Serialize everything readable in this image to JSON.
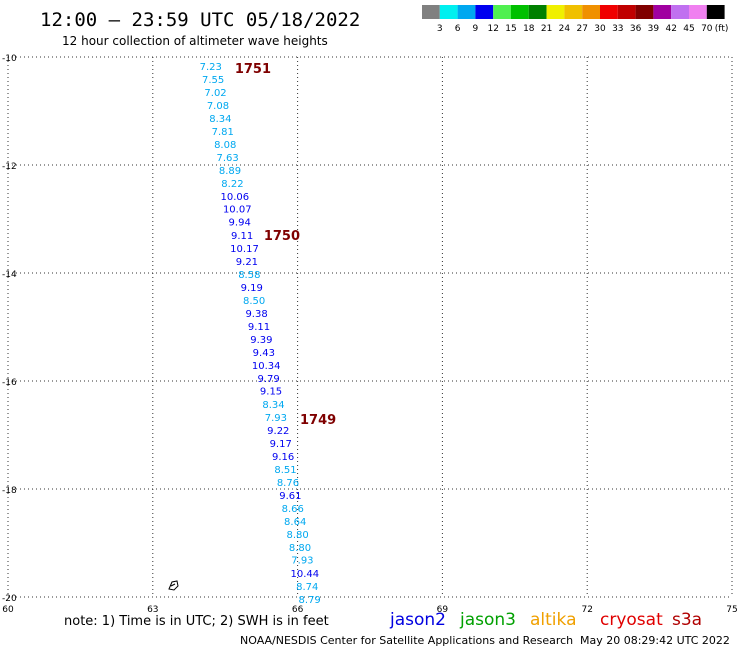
{
  "header": {
    "title": "12:00 – 23:59 UTC 05/18/2022",
    "subtitle": "12 hour collection of altimeter wave heights"
  },
  "legend": {
    "colors": [
      "#808080",
      "#00f0f0",
      "#00a8f0",
      "#0000f0",
      "#50f050",
      "#00c000",
      "#008000",
      "#f0f000",
      "#f0c000",
      "#f09000",
      "#f00000",
      "#c00000",
      "#800000",
      "#a000a0",
      "#c070f0",
      "#f080f0",
      "#000000"
    ],
    "labels": [
      "3",
      "6",
      "9",
      "12",
      "15",
      "18",
      "21",
      "24",
      "27",
      "30",
      "33",
      "36",
      "39",
      "42",
      "45",
      "70"
    ],
    "unit": "(ft)"
  },
  "footer": {
    "note": "note: 1) Time is in UTC; 2) SWH is in feet",
    "satellites": [
      {
        "name": "jason2",
        "color": "#0000e0"
      },
      {
        "name": "jason3",
        "color": "#00a000"
      },
      {
        "name": "altika",
        "color": "#f0a000"
      },
      {
        "name": "cryosat",
        "color": "#e00000"
      },
      {
        "name": "s3a",
        "color": "#b00000"
      }
    ],
    "credit": "NOAA/NESDIS Center for Satellite Applications and Research",
    "timestamp": "May 20 08:29:42 UTC 2022"
  },
  "chart_data": {
    "type": "scatter",
    "title": "12:00 – 23:59 UTC 05/18/2022",
    "xlim": [
      60,
      75
    ],
    "ylim": [
      -20,
      -10
    ],
    "x_ticks": [
      60,
      63,
      66,
      69,
      72,
      75
    ],
    "y_ticks": [
      -10,
      -12,
      -14,
      -16,
      -18,
      -20
    ],
    "grid": true,
    "value_colors": {
      "cyan": "#00a8f0",
      "blue": "#0000f0"
    },
    "series": [
      {
        "points": [
          {
            "x": 64.2,
            "y": -10.17,
            "v": "7.23",
            "c": "cyan"
          },
          {
            "x": 64.25,
            "y": -10.41,
            "v": "7.55",
            "c": "cyan"
          },
          {
            "x": 64.3,
            "y": -10.65,
            "v": "7.02",
            "c": "cyan"
          },
          {
            "x": 64.35,
            "y": -10.89,
            "v": "7.08",
            "c": "cyan"
          },
          {
            "x": 64.4,
            "y": -11.13,
            "v": "8.34",
            "c": "cyan"
          },
          {
            "x": 64.45,
            "y": -11.37,
            "v": "7.81",
            "c": "cyan"
          },
          {
            "x": 64.5,
            "y": -11.61,
            "v": "8.08",
            "c": "cyan"
          },
          {
            "x": 64.55,
            "y": -11.85,
            "v": "7.63",
            "c": "cyan"
          },
          {
            "x": 64.6,
            "y": -12.09,
            "v": "8.89",
            "c": "cyan"
          },
          {
            "x": 64.65,
            "y": -12.33,
            "v": "8.22",
            "c": "cyan"
          },
          {
            "x": 64.7,
            "y": -12.57,
            "v": "10.06",
            "c": "blue"
          },
          {
            "x": 64.75,
            "y": -12.81,
            "v": "10.07",
            "c": "blue"
          },
          {
            "x": 64.8,
            "y": -13.05,
            "v": "9.94",
            "c": "blue"
          },
          {
            "x": 64.85,
            "y": -13.3,
            "v": "9.11",
            "c": "blue"
          },
          {
            "x": 64.9,
            "y": -13.54,
            "v": "10.17",
            "c": "blue"
          },
          {
            "x": 64.95,
            "y": -13.78,
            "v": "9.21",
            "c": "blue"
          },
          {
            "x": 65.0,
            "y": -14.02,
            "v": "8.58",
            "c": "cyan"
          },
          {
            "x": 65.05,
            "y": -14.26,
            "v": "9.19",
            "c": "blue"
          },
          {
            "x": 65.1,
            "y": -14.5,
            "v": "8.50",
            "c": "cyan"
          },
          {
            "x": 65.15,
            "y": -14.74,
            "v": "9.38",
            "c": "blue"
          },
          {
            "x": 65.2,
            "y": -14.98,
            "v": "9.11",
            "c": "blue"
          },
          {
            "x": 65.25,
            "y": -15.22,
            "v": "9.39",
            "c": "blue"
          },
          {
            "x": 65.3,
            "y": -15.46,
            "v": "9.43",
            "c": "blue"
          },
          {
            "x": 65.35,
            "y": -15.7,
            "v": "10.34",
            "c": "blue"
          },
          {
            "x": 65.4,
            "y": -15.94,
            "v": "9.79",
            "c": "blue"
          },
          {
            "x": 65.45,
            "y": -16.18,
            "v": "9.15",
            "c": "blue"
          },
          {
            "x": 65.5,
            "y": -16.43,
            "v": "8.34",
            "c": "cyan"
          },
          {
            "x": 65.55,
            "y": -16.67,
            "v": "7.93",
            "c": "cyan"
          },
          {
            "x": 65.6,
            "y": -16.91,
            "v": "9.22",
            "c": "blue"
          },
          {
            "x": 65.65,
            "y": -17.15,
            "v": "9.17",
            "c": "blue"
          },
          {
            "x": 65.7,
            "y": -17.39,
            "v": "9.16",
            "c": "blue"
          },
          {
            "x": 65.75,
            "y": -17.63,
            "v": "8.51",
            "c": "cyan"
          },
          {
            "x": 65.8,
            "y": -17.87,
            "v": "8.76",
            "c": "cyan"
          },
          {
            "x": 65.85,
            "y": -18.11,
            "v": "9.61",
            "c": "blue"
          },
          {
            "x": 65.9,
            "y": -18.35,
            "v": "8.66",
            "c": "cyan"
          },
          {
            "x": 65.95,
            "y": -18.59,
            "v": "8.64",
            "c": "cyan"
          },
          {
            "x": 66.0,
            "y": -18.83,
            "v": "8.80",
            "c": "cyan"
          },
          {
            "x": 66.05,
            "y": -19.07,
            "v": "8.80",
            "c": "cyan"
          },
          {
            "x": 66.1,
            "y": -19.31,
            "v": "7.93",
            "c": "cyan"
          },
          {
            "x": 66.15,
            "y": -19.56,
            "v": "10.44",
            "c": "blue"
          },
          {
            "x": 66.2,
            "y": -19.8,
            "v": "8.74",
            "c": "cyan"
          },
          {
            "x": 66.25,
            "y": -20.04,
            "v": "8.79",
            "c": "cyan"
          }
        ]
      }
    ],
    "annotations": [
      {
        "text": "1751",
        "x": 64.7,
        "y": -10.2
      },
      {
        "text": "1750",
        "x": 65.3,
        "y": -13.3
      },
      {
        "text": "1749",
        "x": 66.05,
        "y": -16.7
      }
    ]
  }
}
